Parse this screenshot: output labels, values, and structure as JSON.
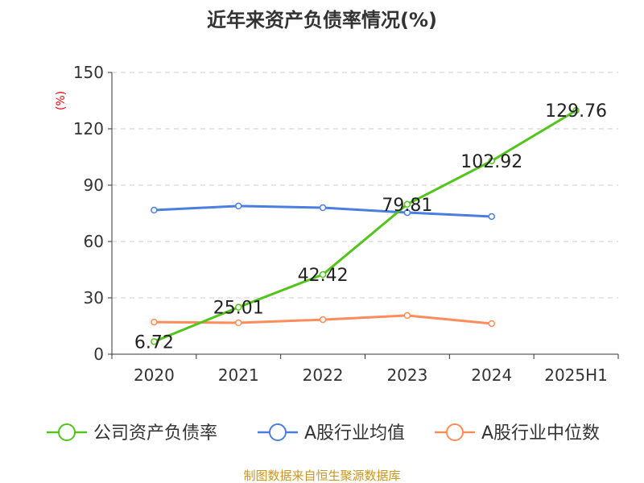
{
  "chart_data": {
    "type": "line",
    "title": "近年来资产负债率情况(%)",
    "ylabel": "(%)",
    "xlabel": "",
    "ylim": [
      0,
      150
    ],
    "yticks": [
      0,
      30,
      60,
      90,
      120,
      150
    ],
    "categories": [
      "2020",
      "2021",
      "2022",
      "2023",
      "2024",
      "2025H1"
    ],
    "grid": true,
    "legend_position": "bottom",
    "series": [
      {
        "name": "公司资产负债率",
        "color": "#52c41a",
        "values": [
          6.72,
          25.01,
          42.42,
          79.81,
          102.92,
          129.76
        ],
        "labels": [
          "6.72",
          "25.01",
          "42.42",
          "79.81",
          "102.92",
          "129.76"
        ]
      },
      {
        "name": "A股行业均值",
        "color": "#4a7ee0",
        "values": [
          76.7,
          78.9,
          78.0,
          75.4,
          73.3,
          null
        ]
      },
      {
        "name": "A股行业中位数",
        "color": "#ff8c5a",
        "values": [
          17.1,
          16.7,
          18.4,
          20.6,
          16.3,
          null
        ]
      }
    ]
  },
  "footer": "制图数据来自恒生聚源数据库"
}
